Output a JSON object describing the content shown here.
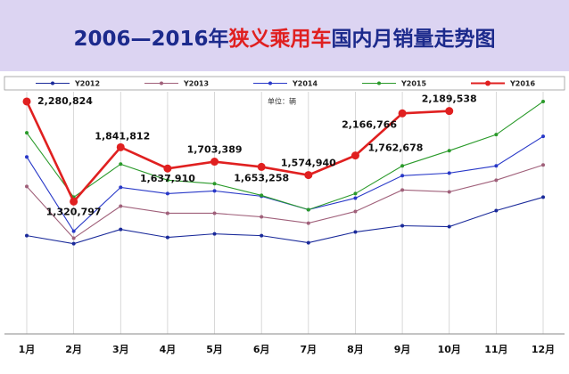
{
  "chart_data": {
    "type": "line",
    "title": [
      "2006—2016年",
      "狭义乘用车",
      "国内月销量走势图"
    ],
    "annotation": "单位：辆",
    "categories": [
      "1月",
      "2月",
      "3月",
      "4月",
      "5月",
      "6月",
      "7月",
      "8月",
      "9月",
      "10月",
      "11月",
      "12月"
    ],
    "ylim": [
      0,
      2400000
    ],
    "grid": "vertical",
    "legend": "top",
    "series": [
      {
        "name": "Y2012",
        "color": "#1a2a9a",
        "values": [
          994000,
          917000,
          1054000,
          977000,
          1011000,
          994000,
          926000,
          1029000,
          1089000,
          1080000,
          1234000,
          1363000
        ]
      },
      {
        "name": "Y2013",
        "color": "#a0607a",
        "values": [
          1466000,
          969000,
          1277000,
          1209000,
          1209000,
          1174000,
          1114000,
          1226000,
          1432000,
          1414000,
          1526000,
          1672000
        ]
      },
      {
        "name": "Y2014",
        "color": "#2838c8",
        "values": [
          1749000,
          1037000,
          1457000,
          1397000,
          1423000,
          1372000,
          1243000,
          1354000,
          1569000,
          1594000,
          1663000,
          1946000
        ]
      },
      {
        "name": "Y2015",
        "color": "#2a9a2a",
        "values": [
          1980000,
          1363000,
          1680000,
          1526000,
          1492000,
          1380000,
          1243000,
          1397000,
          1663000,
          1809000,
          1963000,
          2280000
        ]
      },
      {
        "name": "Y2016",
        "color": "#e02020",
        "values": [
          2280824,
          1320797,
          1841812,
          1637910,
          1703389,
          1653258,
          1574940,
          1762678,
          2166766,
          2189538,
          null,
          null
        ],
        "value_labels": [
          "2,280,824",
          "1,320,797",
          "1,841,812",
          "1,637,910",
          "1,703,389",
          "1,653,258",
          "1,574,940",
          "1,762,678",
          "2,166,766",
          "2,189,538",
          null,
          null
        ]
      }
    ]
  }
}
